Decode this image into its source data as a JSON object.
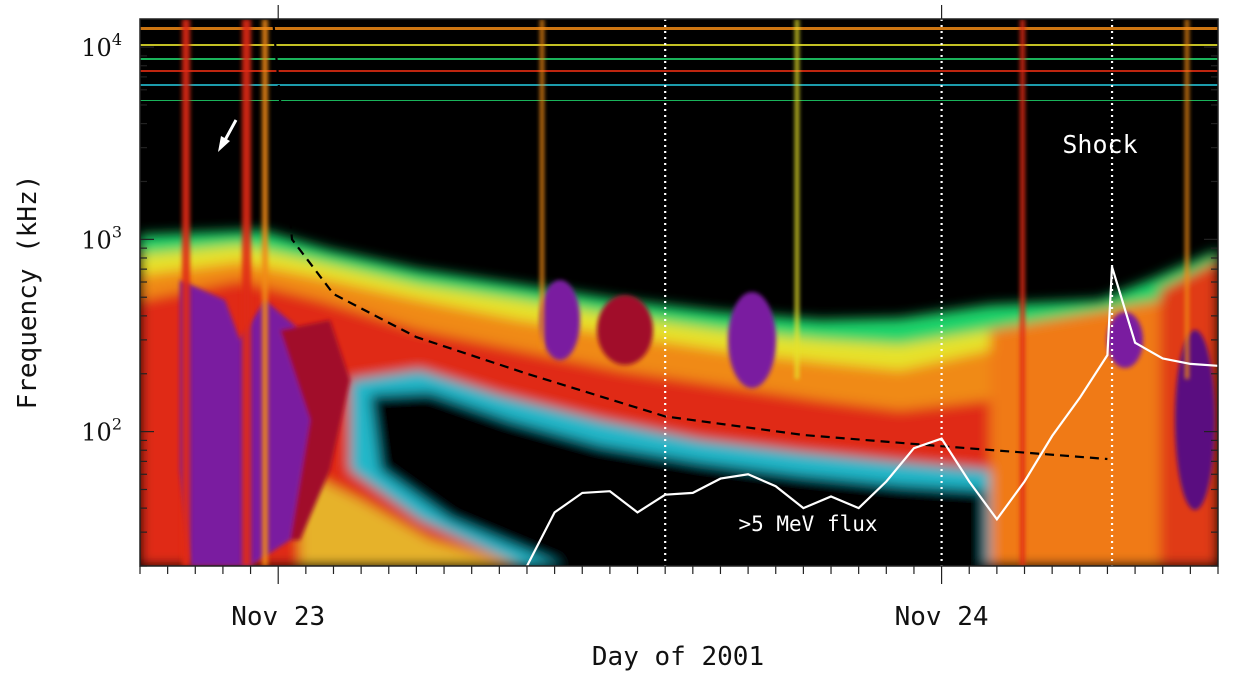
{
  "chart_data": {
    "type": "heatmap",
    "title": "",
    "xlabel": "Day of 2001",
    "ylabel": "Frequency (kHz)",
    "y_scale": "log",
    "ylim": [
      20,
      14000
    ],
    "y_tick_major": [
      {
        "value": 100,
        "base": "10",
        "exp": "2"
      },
      {
        "value": 1000,
        "base": "10",
        "exp": "3"
      },
      {
        "value": 10000,
        "base": "10",
        "exp": "4"
      }
    ],
    "xlim": [
      "2001-11-22 19:00",
      "2001-11-24 10:00"
    ],
    "x_tick_labels": [
      {
        "value": "2001-11-23 00:00",
        "label": "Nov 23"
      },
      {
        "value": "2001-11-24 00:00",
        "label": "Nov 24"
      }
    ],
    "colormap": [
      "#000000",
      "#1b3fa8",
      "#21b7c9",
      "#1fd36b",
      "#e6e22b",
      "#f08a14",
      "#e02c12",
      "#a10e2a",
      "#7a1aa0"
    ],
    "annotations": {
      "shock_label": "Shock",
      "flux_label": ">5 MeV flux",
      "arrow": "white arrow near 3 MHz, early Nov 22"
    },
    "dotted_lines_time": [
      "2001-11-23 14:00",
      "2001-11-24 00:00",
      "2001-11-24 06:10"
    ],
    "dashed_drift_curve": {
      "name": "",
      "x": [
        "2001-11-22 23:50",
        "2001-11-23 00:30",
        "2001-11-23 02:00",
        "2001-11-23 05:00",
        "2001-11-23 09:00",
        "2001-11-23 14:00",
        "2001-11-23 19:00",
        "2001-11-24 00:00",
        "2001-11-24 06:00"
      ],
      "y": [
        13000,
        1000,
        520,
        310,
        200,
        120,
        96,
        84,
        72
      ]
    },
    "flux_curve": {
      "name": ">5 MeV flux",
      "x": [
        "2001-11-23 09:00",
        "2001-11-23 10:00",
        "2001-11-23 11:00",
        "2001-11-23 12:00",
        "2001-11-23 13:00",
        "2001-11-23 14:00",
        "2001-11-23 15:00",
        "2001-11-23 16:00",
        "2001-11-23 17:00",
        "2001-11-23 18:00",
        "2001-11-23 19:00",
        "2001-11-23 20:00",
        "2001-11-23 21:00",
        "2001-11-23 22:00",
        "2001-11-23 23:00",
        "2001-11-24 00:00",
        "2001-11-24 01:00",
        "2001-11-24 02:00",
        "2001-11-24 03:00",
        "2001-11-24 04:00",
        "2001-11-24 05:00",
        "2001-11-24 06:00",
        "2001-11-24 06:10",
        "2001-11-24 07:00",
        "2001-11-24 08:00",
        "2001-11-24 09:00",
        "2001-11-24 10:00"
      ],
      "y": [
        20,
        38,
        48,
        49,
        38,
        47,
        48,
        57,
        60,
        52,
        40,
        46,
        40,
        55,
        82,
        92,
        55,
        35,
        55,
        95,
        150,
        250,
        720,
        290,
        240,
        225,
        220
      ]
    }
  }
}
